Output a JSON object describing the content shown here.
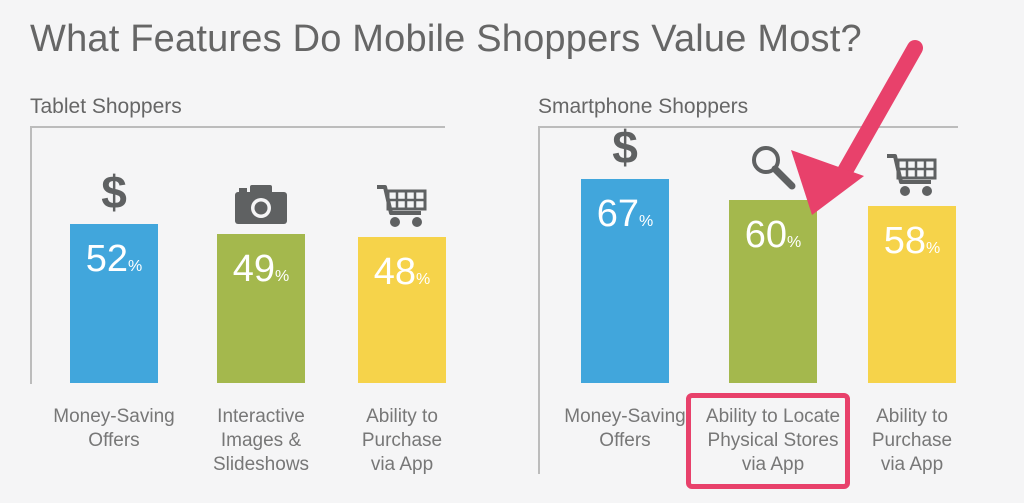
{
  "title": "What Features Do Mobile Shoppers Value Most?",
  "colors": {
    "blue": "#41a6dc",
    "green": "#a4b84d",
    "yellow": "#f6d34a",
    "icon": "#5f6162",
    "highlight": "#e8416b"
  },
  "chart_data": [
    {
      "type": "bar",
      "title": "Tablet Shoppers",
      "categories": [
        "Money-Saving Offers",
        "Interactive Images & Slideshows",
        "Ability to Purchase via App"
      ],
      "values": [
        52,
        49,
        48
      ],
      "value_labels": [
        "52",
        "49",
        "48"
      ],
      "unit": "%",
      "colors": [
        "#41a6dc",
        "#a4b84d",
        "#f6d34a"
      ],
      "icons": [
        "dollar-icon",
        "camera-icon",
        "shopping-cart-icon"
      ],
      "ylim": [
        0,
        100
      ]
    },
    {
      "type": "bar",
      "title": "Smartphone Shoppers",
      "categories": [
        "Money-Saving Offers",
        "Ability to Locate Physical Stores via App",
        "Ability to Purchase via App"
      ],
      "values": [
        67,
        60,
        58
      ],
      "value_labels": [
        "67",
        "60",
        "58"
      ],
      "unit": "%",
      "colors": [
        "#41a6dc",
        "#a4b84d",
        "#f6d34a"
      ],
      "icons": [
        "dollar-icon",
        "magnifier-icon",
        "shopping-cart-icon"
      ],
      "highlighted_category": "Ability to Locate Physical Stores via App",
      "ylim": [
        0,
        100
      ]
    }
  ]
}
